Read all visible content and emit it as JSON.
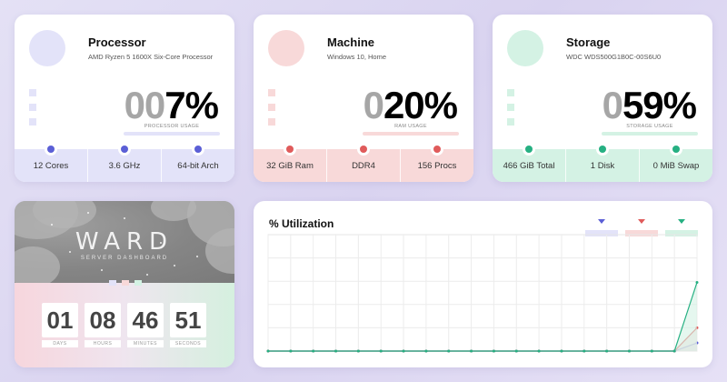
{
  "colors": {
    "processor": "#5b5fd6",
    "processor_light": "#e3e3f9",
    "machine": "#e05b5b",
    "machine_light": "#f8d9d9",
    "storage": "#26b082",
    "storage_light": "#d4f2e4"
  },
  "cards": [
    {
      "key": "processor",
      "title": "Processor",
      "subtitle": "AMD Ryzen 5 1600X Six-Core Processor",
      "ghost_digits": "00",
      "value": "7%",
      "usage_label": "PROCESSOR USAGE",
      "usage_percent": 7,
      "footer": [
        "12 Cores",
        "3.6 GHz",
        "64-bit Arch"
      ]
    },
    {
      "key": "machine",
      "title": "Machine",
      "subtitle": "Windows 10, Home",
      "ghost_digits": "0",
      "value": "20%",
      "usage_label": "RAM USAGE",
      "usage_percent": 20,
      "footer": [
        "32 GiB Ram",
        "DDR4",
        "156 Procs"
      ]
    },
    {
      "key": "storage",
      "title": "Storage",
      "subtitle": "WDC WDS500G1B0C-00S6U0",
      "ghost_digits": "0",
      "value": "59%",
      "usage_label": "STORAGE USAGE",
      "usage_percent": 59,
      "footer": [
        "466 GiB Total",
        "1 Disk",
        "0 MiB Swap"
      ]
    }
  ],
  "ward": {
    "title": "WARD",
    "subtitle": "SERVER DASHBOARD",
    "timer": [
      {
        "value": "01",
        "label": "DAYS"
      },
      {
        "value": "08",
        "label": "HOURS"
      },
      {
        "value": "46",
        "label": "MINUTES"
      },
      {
        "value": "51",
        "label": "SECONDS"
      }
    ]
  },
  "utilization": {
    "title": "% Utilization",
    "chart_data": {
      "type": "line",
      "title": "% Utilization",
      "x": [
        1,
        2,
        3,
        4,
        5,
        6,
        7,
        8,
        9,
        10,
        11,
        12,
        13,
        14,
        15,
        16,
        17,
        18,
        19,
        20
      ],
      "ylim": [
        0,
        100
      ],
      "grid": true,
      "legend": "top-right",
      "series": [
        {
          "key": "processor",
          "values": [
            0,
            0,
            0,
            0,
            0,
            0,
            0,
            0,
            0,
            0,
            0,
            0,
            0,
            0,
            0,
            0,
            0,
            0,
            0,
            7
          ]
        },
        {
          "key": "machine",
          "values": [
            0,
            0,
            0,
            0,
            0,
            0,
            0,
            0,
            0,
            0,
            0,
            0,
            0,
            0,
            0,
            0,
            0,
            0,
            0,
            20
          ]
        },
        {
          "key": "storage",
          "values": [
            0,
            0,
            0,
            0,
            0,
            0,
            0,
            0,
            0,
            0,
            0,
            0,
            0,
            0,
            0,
            0,
            0,
            0,
            0,
            59
          ]
        }
      ]
    }
  }
}
